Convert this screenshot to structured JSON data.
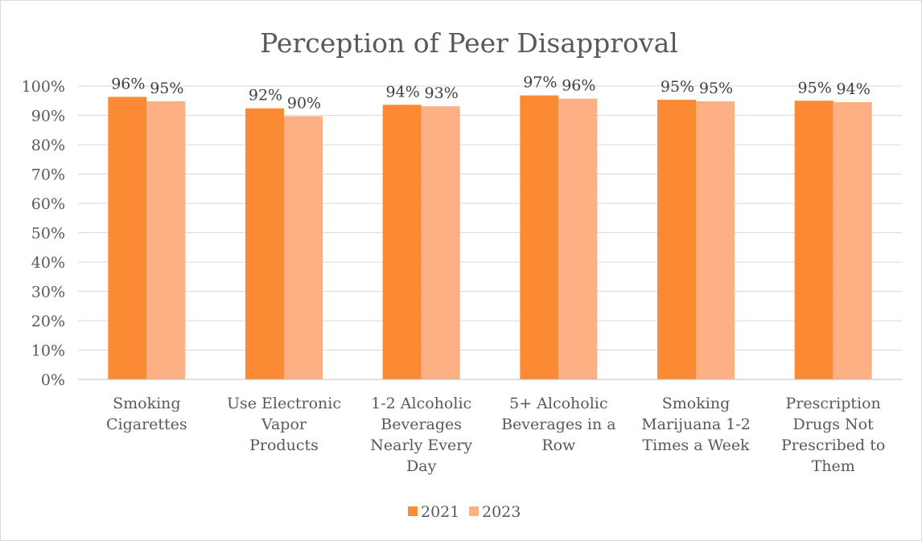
{
  "chart_data": {
    "type": "bar",
    "title": "Perception of Peer Disapproval",
    "categories": [
      [
        "Smoking",
        "Cigarettes"
      ],
      [
        "Use Electronic",
        "Vapor",
        "Products"
      ],
      [
        "1-2 Alcoholic",
        "Beverages",
        "Nearly Every",
        "Day"
      ],
      [
        "5+ Alcoholic",
        "Beverages in a",
        "Row"
      ],
      [
        "Smoking",
        "Marijuana 1-2",
        "Times a Week"
      ],
      [
        "Prescription",
        "Drugs Not",
        "Prescribed to",
        "Them"
      ]
    ],
    "series": [
      {
        "name": "2021",
        "color": "#fc8a35",
        "values": [
          96.3,
          92.4,
          93.6,
          96.8,
          95.3,
          95.0
        ],
        "labels": [
          "96%",
          "92%",
          "94%",
          "97%",
          "95%",
          "95%"
        ]
      },
      {
        "name": "2023",
        "color": "#fdb083",
        "values": [
          94.8,
          89.7,
          93.1,
          95.7,
          94.8,
          94.5
        ],
        "labels": [
          "95%",
          "90%",
          "93%",
          "96%",
          "95%",
          "94%"
        ]
      }
    ],
    "ylim": [
      0,
      100
    ],
    "yticks": [
      0,
      10,
      20,
      30,
      40,
      50,
      60,
      70,
      80,
      90,
      100
    ],
    "ytick_labels": [
      "0%",
      "10%",
      "20%",
      "30%",
      "40%",
      "50%",
      "60%",
      "70%",
      "80%",
      "90%",
      "100%"
    ],
    "xlabel": "",
    "ylabel": "",
    "grid": true,
    "legend": "bottom"
  }
}
